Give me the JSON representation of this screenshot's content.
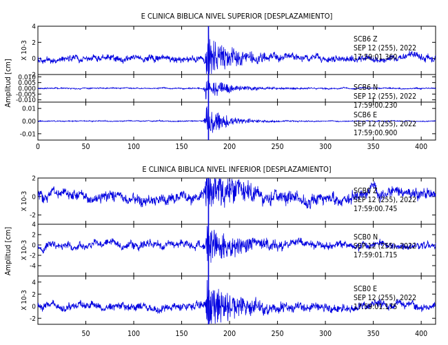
{
  "chart_data": [
    {
      "type": "line",
      "title": "E CLINICA BIBLICA NIVEL SUPERIOR [DESPLAZAMIENTO]",
      "ylabel": "Amplitud [cm]",
      "xlim": [
        0,
        415
      ],
      "xticks": [
        0,
        50,
        100,
        150,
        200,
        250,
        300,
        350,
        400
      ],
      "xtick_labels": [
        "0",
        "50",
        "100",
        "150",
        "200",
        "250",
        "300",
        "350",
        "400"
      ],
      "event_marker_x": 178,
      "traces": [
        {
          "station": "SCB6",
          "component": "Z",
          "date": "SEP 12 (255), 2022",
          "time": "17:59:01.360",
          "ylim": [
            -2,
            4
          ],
          "yticks": [
            -2,
            0,
            2,
            4
          ],
          "ytick_labels": [
            "-2",
            "0",
            "2",
            "4"
          ],
          "scale_label": "X 10-3",
          "noise": 0.32,
          "peak": 2.6,
          "onset": 175,
          "decay": 22,
          "cut": 300,
          "drift": 0,
          "seed": 11
        },
        {
          "station": "SCB6",
          "component": "N",
          "date": "SEP 12 (255), 2022",
          "time": "17:59:00.230",
          "ylim": [
            -0.012,
            0.012
          ],
          "yticks": [
            -0.01,
            -0.005,
            0.0,
            0.005,
            0.01
          ],
          "ytick_labels": [
            "-0.010",
            "-0.005",
            "0.000",
            "0.005",
            "0.010"
          ],
          "scale_label": "",
          "noise": 0.0004,
          "peak": 0.0085,
          "onset": 175,
          "decay": 24,
          "cut": 300,
          "drift": 0,
          "seed": 23
        },
        {
          "station": "SCB6",
          "component": "E",
          "date": "SEP 12 (255), 2022",
          "time": "17:59:00.900",
          "ylim": [
            -0.015,
            0.015
          ],
          "yticks": [
            -0.01,
            0.0,
            0.01
          ],
          "ytick_labels": [
            "-0.01",
            "0.00",
            "0.01"
          ],
          "scale_label": "",
          "noise": 0.0003,
          "peak": 0.0115,
          "onset": 175,
          "decay": 20,
          "cut": 290,
          "drift": 0,
          "seed": 37
        }
      ]
    },
    {
      "type": "line",
      "title": "E CLINICA BIBLICA NIVEL INFERIOR [DESPLAZAMIENTO]",
      "ylabel": "Amplitud [cm]",
      "xlim": [
        0,
        415
      ],
      "xticks": [
        50,
        100,
        150,
        200,
        250,
        300,
        350,
        400
      ],
      "xtick_labels": [
        "50",
        "100",
        "150",
        "200",
        "250",
        "300",
        "350",
        "400"
      ],
      "event_marker_x": 178,
      "traces": [
        {
          "station": "SCB0",
          "component": "Z",
          "date": "SEP 12 (255), 2022",
          "time": "17:59:00.745",
          "ylim": [
            -3,
            2
          ],
          "yticks": [
            -2,
            0,
            2
          ],
          "ytick_labels": [
            "-2",
            "0",
            "2"
          ],
          "scale_label": "X 10-3",
          "noise": 0.45,
          "peak": 2.3,
          "onset": 175,
          "decay": 30,
          "cut": 330,
          "drift": 0.6,
          "seed": 51
        },
        {
          "station": "SCB0",
          "component": "N",
          "date": "SEP 12 (255), 2022",
          "time": "17:59:01.715",
          "ylim": [
            -6,
            4
          ],
          "yticks": [
            -4,
            -2,
            0,
            2,
            4
          ],
          "ytick_labels": [
            "-4",
            "-2",
            "0",
            "2",
            "4"
          ],
          "scale_label": "X 10-3",
          "noise": 0.55,
          "peak": 3.2,
          "onset": 176,
          "decay": 30,
          "cut": 330,
          "drift": 0.3,
          "seed": 67
        },
        {
          "station": "SCB0",
          "component": "E",
          "date": "SEP 12 (255), 2022",
          "time": "17:59:01.175",
          "ylim": [
            -3,
            5
          ],
          "yticks": [
            -2,
            0,
            2,
            4
          ],
          "ytick_labels": [
            "-2",
            "0",
            "2",
            "4"
          ],
          "scale_label": "X 10-3",
          "noise": 0.5,
          "peak": 3.3,
          "onset": 176,
          "decay": 28,
          "cut": 330,
          "drift": 0.3,
          "seed": 83
        }
      ]
    }
  ]
}
